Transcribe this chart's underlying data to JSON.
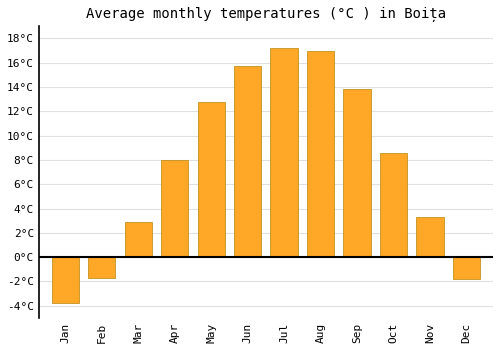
{
  "title": "Average monthly temperatures (°C ) in Boița",
  "months": [
    "Jan",
    "Feb",
    "Mar",
    "Apr",
    "May",
    "Jun",
    "Jul",
    "Aug",
    "Sep",
    "Oct",
    "Nov",
    "Dec"
  ],
  "values": [
    -3.8,
    -1.7,
    2.9,
    8.0,
    12.8,
    15.7,
    17.2,
    17.0,
    13.8,
    8.6,
    3.3,
    -1.8
  ],
  "bar_color_face": "#FFA726",
  "bar_color_edge": "#B8860B",
  "ylim": [
    -5,
    19
  ],
  "yticks": [
    -4,
    -2,
    0,
    2,
    4,
    6,
    8,
    10,
    12,
    14,
    16,
    18
  ],
  "ylabel_suffix": "°C",
  "grid_color": "#e0e0e0",
  "background_color": "#ffffff",
  "title_fontsize": 10,
  "tick_fontsize": 8,
  "bar_width": 0.75
}
